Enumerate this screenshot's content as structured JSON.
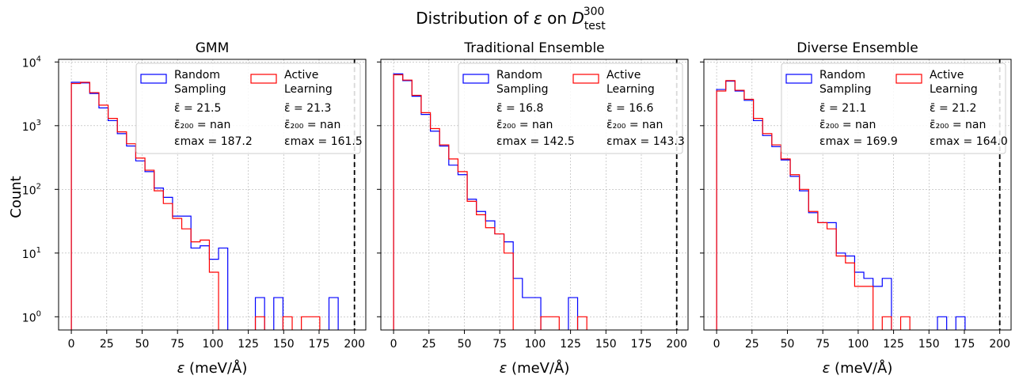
{
  "chart_data": {
    "type": "histogram",
    "suptitle_prefix": "Distribution of ",
    "suptitle_eps": "ε",
    "suptitle_mid": " on ",
    "suptitle_D": "D",
    "suptitle_sub": "test",
    "suptitle_sup": "300",
    "y_axis_label": "Count",
    "x_axis_label_eps": "ε",
    "x_axis_label_units": " (meV/Å)",
    "x_ticks": [
      "0",
      "25",
      "50",
      "75",
      "100",
      "125",
      "150",
      "175",
      "200"
    ],
    "y_ticks": [
      {
        "value": 1,
        "base": "10",
        "exp": "0"
      },
      {
        "value": 10,
        "base": "10",
        "exp": "1"
      },
      {
        "value": 100,
        "base": "10",
        "exp": "2"
      },
      {
        "value": 1000,
        "base": "10",
        "exp": "3"
      },
      {
        "value": 10000,
        "base": "10",
        "exp": "4"
      }
    ],
    "xlim": [
      -9,
      208
    ],
    "ylim": [
      0.62,
      11000
    ],
    "threshold_line_x": 200,
    "grid": true,
    "legend_location": "upper right",
    "series_colors": {
      "random": "#0000ff",
      "active": "#ff0000",
      "threshold": "#000000",
      "grid": "#b0b0b0"
    },
    "bin_width": 6.5,
    "panels": [
      {
        "title": "GMM",
        "legend": [
          {
            "name_line1": "Random",
            "name_line2": "Sampling",
            "mean": "ε̄ = 21.5",
            "mean200": "ε̄₂₀₀ = nan",
            "max": "εmax = 187.2",
            "color": "#0000ff"
          },
          {
            "name_line1": "Active",
            "name_line2": "Learning",
            "mean": "ε̄ = 21.3",
            "mean200": "ε̄₂₀₀ = nan",
            "max": "εmax = 161.5",
            "color": "#ff0000"
          }
        ],
        "random": [
          4800,
          4700,
          3200,
          1900,
          1200,
          750,
          480,
          280,
          190,
          105,
          75,
          38,
          38,
          12,
          13,
          8,
          12,
          4,
          1,
          1,
          2,
          1,
          2,
          1,
          1,
          1,
          1,
          1,
          2
        ],
        "active": [
          4600,
          4800,
          3300,
          2100,
          1300,
          800,
          520,
          310,
          200,
          95,
          60,
          35,
          24,
          15,
          16,
          5,
          3,
          2,
          2,
          1,
          1,
          1,
          1,
          1,
          1,
          1,
          1
        ],
        "random_zero": [
          17,
          18,
          19,
          21,
          23,
          24,
          25,
          26,
          27
        ],
        "active_zero": [
          16,
          17,
          18,
          19,
          21,
          22,
          24
        ]
      },
      {
        "title": "Traditional Ensemble",
        "legend": [
          {
            "name_line1": "Random",
            "name_line2": "Sampling",
            "mean": "ε̄ = 16.8",
            "mean200": "ε̄₂₀₀ = nan",
            "max": "εmax = 142.5",
            "color": "#0000ff"
          },
          {
            "name_line1": "Active",
            "name_line2": "Learning",
            "mean": "ε̄ = 16.6",
            "mean200": "ε̄₂₀₀ = nan",
            "max": "εmax = 143.3",
            "color": "#ff0000"
          }
        ],
        "random": [
          6500,
          5100,
          2900,
          1500,
          820,
          480,
          240,
          170,
          70,
          45,
          32,
          20,
          15,
          4,
          2,
          2,
          1,
          1,
          1,
          2,
          1,
          1
        ],
        "active": [
          6300,
          5200,
          3000,
          1600,
          900,
          500,
          300,
          190,
          65,
          40,
          25,
          20,
          10,
          1,
          1,
          1,
          1,
          1,
          2,
          1,
          1
        ],
        "random_zero": [
          16,
          17,
          18,
          20,
          21
        ],
        "active_zero": [
          13,
          14,
          15,
          18,
          19
        ]
      },
      {
        "title": "Diverse Ensemble",
        "legend": [
          {
            "name_line1": "Random",
            "name_line2": "Sampling",
            "mean": "ε̄ = 21.1",
            "mean200": "ε̄₂₀₀ = nan",
            "max": "εmax = 169.9",
            "color": "#0000ff"
          },
          {
            "name_line1": "Active",
            "name_line2": "Learning",
            "mean": "ε̄ = 21.2",
            "mean200": "ε̄₂₀₀ = nan",
            "max": "εmax = 164.0",
            "color": "#ff0000"
          }
        ],
        "random": [
          3700,
          5000,
          3500,
          2500,
          1200,
          700,
          470,
          290,
          160,
          95,
          43,
          30,
          30,
          10,
          9,
          5,
          4,
          3,
          4,
          1,
          1,
          1,
          1,
          1,
          1,
          1,
          1
        ],
        "active": [
          3500,
          5100,
          3600,
          2600,
          1300,
          750,
          500,
          300,
          170,
          100,
          45,
          30,
          24,
          9,
          7,
          3,
          3,
          4,
          1,
          1,
          1,
          1,
          1,
          1,
          1,
          1
        ],
        "random_zero": [
          19,
          20,
          21,
          22,
          23,
          25
        ],
        "active_zero": [
          17,
          19,
          21,
          22,
          23,
          24,
          25
        ]
      }
    ]
  }
}
